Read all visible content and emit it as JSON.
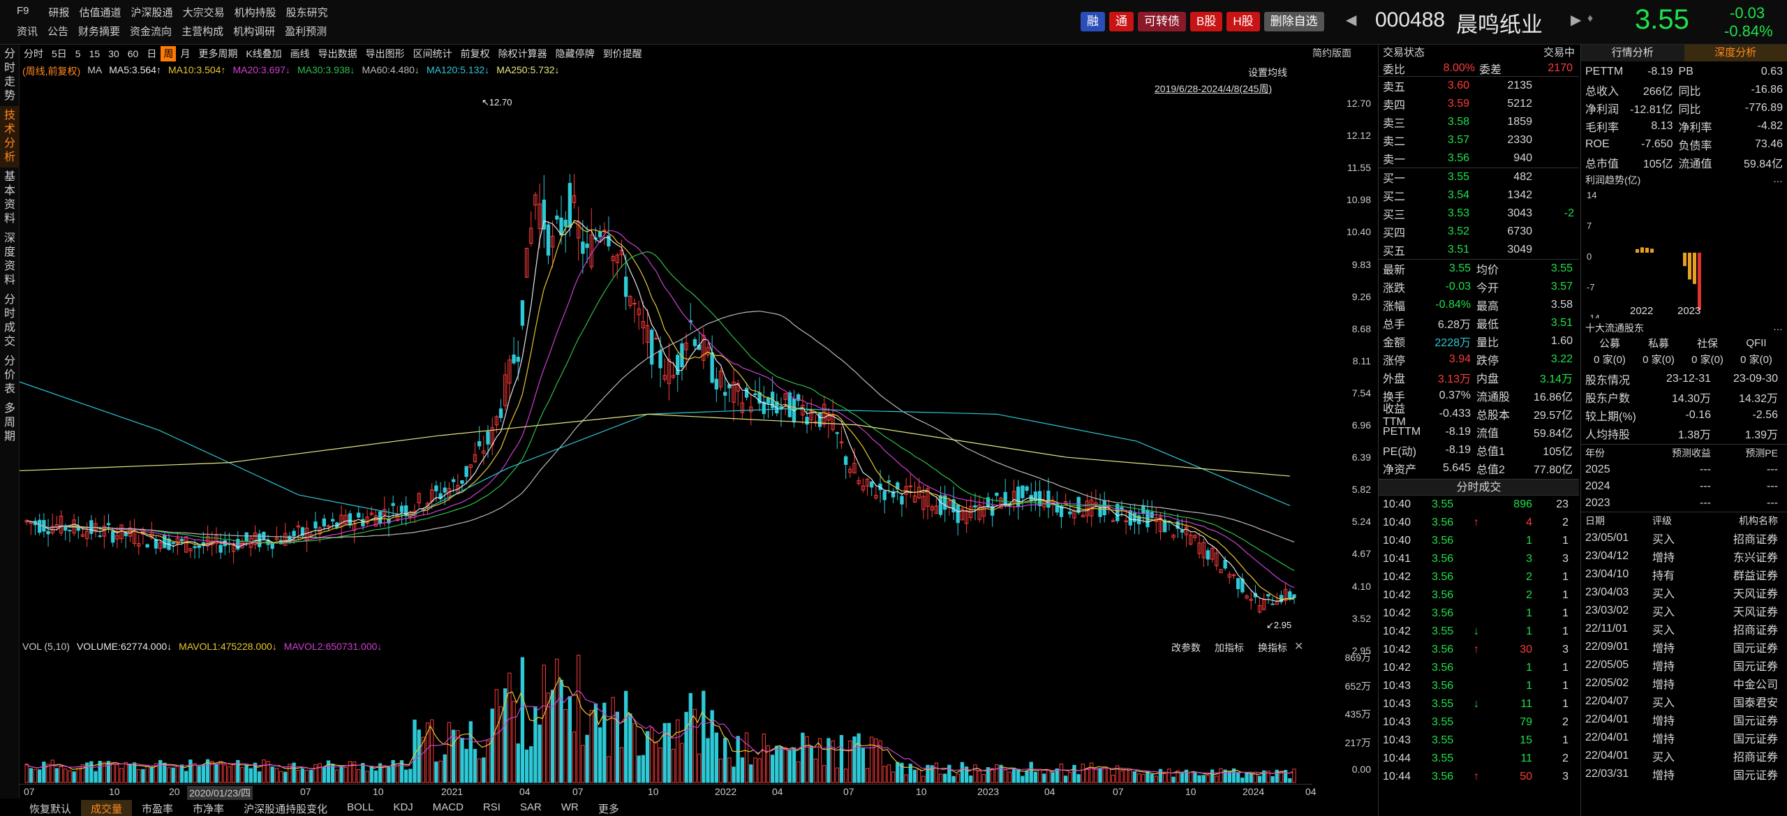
{
  "menu": {
    "row1": [
      "F9",
      "研报",
      "估值通道",
      "沪深股通",
      "大宗交易",
      "机构持股",
      "股东研究"
    ],
    "row2": [
      "资讯",
      "公告",
      "财务摘要",
      "资金流向",
      "主营构成",
      "机构调研",
      "盈利预测"
    ]
  },
  "tags": [
    {
      "label": "融",
      "bg": "#2a4db8"
    },
    {
      "label": "通",
      "bg": "#c81414"
    },
    {
      "label": "可转债",
      "bg": "#8a1a2a"
    },
    {
      "label": "B股",
      "bg": "#c81414"
    },
    {
      "label": "H股",
      "bg": "#c81414"
    },
    {
      "label": "删除自选",
      "bg": "#555"
    }
  ],
  "stock": {
    "code": "000488",
    "name": "晨鸣纸业",
    "price": "3.55",
    "change": "-0.03",
    "pct": "-0.84%"
  },
  "left_tabs": [
    "分时走势",
    "技术分析",
    "基本资料",
    "深度资料",
    "分时成交",
    "分价表",
    "多周期"
  ],
  "toolbar": [
    "分时",
    "5日",
    "5",
    "15",
    "30",
    "60",
    "日",
    "周",
    "月",
    "更多周期",
    "K线叠加",
    "画线",
    "导出数据",
    "导出图形",
    "区间统计",
    "前复权",
    "除权计算器",
    "隐藏停牌",
    "到价提醒"
  ],
  "toolbar_selected": "周",
  "ma_legend": {
    "prefix": "(周线,前复权)",
    "ma": "MA",
    "items": [
      {
        "t": "MA5:3.564↑",
        "c": "#e8e8e8"
      },
      {
        "t": "MA10:3.504↑",
        "c": "#e8c830"
      },
      {
        "t": "MA20:3.697↓",
        "c": "#d040d0"
      },
      {
        "t": "MA30:3.938↓",
        "c": "#2ec04a"
      },
      {
        "t": "MA60:4.480↓",
        "c": "#bbbbbb"
      },
      {
        "t": "MA120:5.132↓",
        "c": "#2ec9d6"
      },
      {
        "t": "MA250:5.732↓",
        "c": "#e8e880"
      }
    ]
  },
  "chart_opts": {
    "set_ma": "设置均线",
    "range": "2019/6/28-2024/4/8(245周)",
    "simple": "简约版面"
  },
  "price_axis": [
    "12.70",
    "12.12",
    "11.55",
    "10.98",
    "10.40",
    "9.83",
    "9.26",
    "8.68",
    "8.11",
    "7.54",
    "6.96",
    "6.39",
    "5.82",
    "5.24",
    "4.67",
    "4.10",
    "3.52",
    "2.95"
  ],
  "high_label": "12.70",
  "low_label": "2.95",
  "vol_legend": {
    "title": "VOL (5,10)",
    "items": [
      {
        "t": "VOLUME:62774.000↓",
        "c": "#e8e8e8"
      },
      {
        "t": "MAVOL1:475228.000↓",
        "c": "#e8c830"
      },
      {
        "t": "MAVOL2:650731.000↓",
        "c": "#d040d0"
      }
    ],
    "btns": [
      "改参数",
      "加指标",
      "换指标"
    ]
  },
  "vol_axis": [
    "869万",
    "652万",
    "435万",
    "217万",
    "0.00"
  ],
  "x_axis": [
    "07",
    "10",
    "20",
    "2020/01/23/四",
    "07",
    "10",
    "2021",
    "04",
    "07",
    "10",
    "2022",
    "04",
    "07",
    "10",
    "2023",
    "04",
    "07",
    "10",
    "2024",
    "04"
  ],
  "bottom_tabs": [
    "恢复默认",
    "成交量",
    "市盈率",
    "市净率",
    "沪深股通持股变化",
    "BOLL",
    "KDJ",
    "MACD",
    "RSI",
    "SAR",
    "WR",
    "更多"
  ],
  "bottom_selected": "成交量",
  "trade": {
    "header": "交易状态",
    "status": "交易中",
    "webi_label": "委比",
    "webi": "8.00%",
    "wecha_label": "委差",
    "wecha": "2170",
    "asks": [
      [
        "卖五",
        "3.60",
        "2135",
        ""
      ],
      [
        "卖四",
        "3.59",
        "5212",
        ""
      ],
      [
        "卖三",
        "3.58",
        "1859",
        ""
      ],
      [
        "卖二",
        "3.57",
        "2330",
        ""
      ],
      [
        "卖一",
        "3.56",
        "940",
        ""
      ]
    ],
    "bids": [
      [
        "买一",
        "3.55",
        "482",
        ""
      ],
      [
        "买二",
        "3.54",
        "1342",
        ""
      ],
      [
        "买三",
        "3.53",
        "3043",
        "-2"
      ],
      [
        "买四",
        "3.52",
        "6730",
        ""
      ],
      [
        "买五",
        "3.51",
        "3049",
        ""
      ]
    ],
    "stats": [
      [
        "最新",
        "3.55",
        "均价",
        "3.55"
      ],
      [
        "涨跌",
        "-0.03",
        "今开",
        "3.57"
      ],
      [
        "涨幅",
        "-0.84%",
        "最高",
        "3.58"
      ],
      [
        "总手",
        "6.28万",
        "最低",
        "3.51"
      ],
      [
        "金额",
        "2228万",
        "量比",
        "1.60"
      ],
      [
        "涨停",
        "3.94",
        "跌停",
        "3.22"
      ],
      [
        "外盘",
        "3.13万",
        "内盘",
        "3.14万"
      ],
      [
        "换手",
        "0.37%",
        "流通股",
        "16.86亿"
      ],
      [
        "收益TTM",
        "-0.433",
        "总股本",
        "29.57亿"
      ],
      [
        "PETTM",
        "-8.19",
        "流值",
        "59.84亿"
      ],
      [
        "PE(动)",
        "-8.19",
        "总值1",
        "105亿"
      ],
      [
        "净资产",
        "5.645",
        "总值2",
        "77.80亿"
      ]
    ]
  },
  "ticks_title": "分时成交",
  "ticks": [
    [
      "10:40",
      "3.55",
      "",
      "896",
      "23"
    ],
    [
      "10:40",
      "3.56",
      "↑",
      "4",
      "2"
    ],
    [
      "10:40",
      "3.56",
      "",
      "1",
      "1"
    ],
    [
      "10:41",
      "3.56",
      "",
      "3",
      "3"
    ],
    [
      "10:42",
      "3.56",
      "",
      "2",
      "1"
    ],
    [
      "10:42",
      "3.56",
      "",
      "2",
      "1"
    ],
    [
      "10:42",
      "3.56",
      "",
      "1",
      "1"
    ],
    [
      "10:42",
      "3.55",
      "↓",
      "1",
      "1"
    ],
    [
      "10:42",
      "3.56",
      "↑",
      "30",
      "3"
    ],
    [
      "10:42",
      "3.56",
      "",
      "1",
      "1"
    ],
    [
      "10:43",
      "3.56",
      "",
      "1",
      "1"
    ],
    [
      "10:43",
      "3.55",
      "↓",
      "11",
      "1"
    ],
    [
      "10:43",
      "3.55",
      "",
      "79",
      "2"
    ],
    [
      "10:43",
      "3.55",
      "",
      "15",
      "1"
    ],
    [
      "10:44",
      "3.55",
      "",
      "11",
      "2"
    ],
    [
      "10:44",
      "3.56",
      "↑",
      "50",
      "3"
    ]
  ],
  "analysis": {
    "tabs": [
      "行情分析",
      "深度分析"
    ],
    "fin": [
      [
        "PETTM",
        "-8.19",
        "PB",
        "0.63"
      ],
      [
        "总收入",
        "266亿",
        "同比",
        "-16.86"
      ],
      [
        "净利润",
        "-12.81亿",
        "同比",
        "-776.89"
      ],
      [
        "毛利率",
        "8.13",
        "净利率",
        "-4.82"
      ],
      [
        "ROE",
        "-7.650",
        "负债率",
        "73.46"
      ],
      [
        "总市值",
        "105亿",
        "流通值",
        "59.84亿"
      ]
    ],
    "profit_title": "利润趋势(亿)",
    "profit_axis": [
      "14",
      "7",
      "0",
      "-7",
      "-14"
    ],
    "profit_years": [
      "2022",
      "2023"
    ],
    "profit_2022": [
      0.8,
      1.2,
      1.1,
      0.9
    ],
    "profit_2023": [
      -3,
      -6,
      -7,
      -12.8
    ],
    "holders_title": "十大流通股东",
    "holders_head": [
      "公募",
      "私募",
      "社保",
      "QFII"
    ],
    "holders_vals": [
      "0 家(0)",
      "0 家(0)",
      "0 家(0)",
      "0 家(0)"
    ],
    "sh": [
      [
        "股东情况",
        "23-12-31",
        "23-09-30"
      ],
      [
        "股东户数",
        "14.30万",
        "14.32万"
      ],
      [
        "较上期(%)",
        "-0.16",
        "-2.56"
      ],
      [
        "人均持股",
        "1.38万",
        "1.39万"
      ]
    ],
    "fc_head": [
      "年份",
      "预测收益",
      "预测PE"
    ],
    "fc": [
      [
        "2025",
        "---",
        "---"
      ],
      [
        "2024",
        "---",
        "---"
      ],
      [
        "2023",
        "---",
        "---"
      ]
    ],
    "rating_head": [
      "日期",
      "评级",
      "机构名称"
    ],
    "ratings": [
      [
        "23/05/01",
        "买入",
        "招商证券"
      ],
      [
        "23/04/12",
        "增持",
        "东兴证券"
      ],
      [
        "23/04/10",
        "持有",
        "群益证券"
      ],
      [
        "23/04/03",
        "买入",
        "天风证券"
      ],
      [
        "23/03/02",
        "买入",
        "天风证券"
      ],
      [
        "22/11/01",
        "买入",
        "招商证券"
      ],
      [
        "22/09/01",
        "增持",
        "国元证券"
      ],
      [
        "22/05/05",
        "增持",
        "国元证券"
      ],
      [
        "22/05/02",
        "增持",
        "中金公司"
      ],
      [
        "22/04/07",
        "买入",
        "国泰君安"
      ],
      [
        "22/04/01",
        "增持",
        "国元证券"
      ],
      [
        "22/04/01",
        "增持",
        "国元证券"
      ],
      [
        "22/04/01",
        "买入",
        "招商证券"
      ],
      [
        "22/03/31",
        "增持",
        "国元证券"
      ]
    ]
  },
  "chart_data": {
    "type": "candlestick",
    "title": "",
    "series": [
      {
        "name": "MA5"
      },
      {
        "name": "MA10"
      },
      {
        "name": "MA20"
      },
      {
        "name": "MA30"
      },
      {
        "name": "MA60"
      },
      {
        "name": "MA120"
      },
      {
        "name": "MA250"
      }
    ],
    "ylim": [
      2.95,
      12.7
    ],
    "high": 12.7,
    "low": 2.95
  }
}
